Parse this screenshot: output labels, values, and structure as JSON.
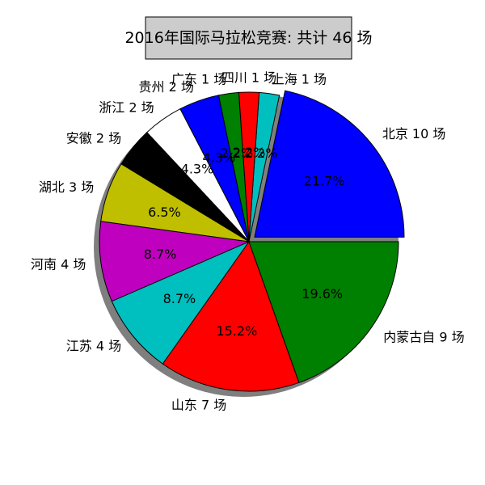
{
  "chart_data": {
    "type": "pie",
    "title": "2016年国际马拉松竞赛: 共计 46 场",
    "slices": [
      {
        "label": "北京 10 场",
        "value": 10,
        "pct": "21.7%",
        "color": "#0000ff",
        "explode": true
      },
      {
        "label": "上海 1 场",
        "value": 1,
        "pct": "2.2%",
        "color": "#00bfbf",
        "explode": false
      },
      {
        "label": "四川 1 场",
        "value": 1,
        "pct": "2.2%",
        "color": "#ff0000",
        "explode": false
      },
      {
        "label": "广东 1 场",
        "value": 1,
        "pct": "2.2%",
        "color": "#008000",
        "explode": false
      },
      {
        "label": "贵州 2 场",
        "value": 2,
        "pct": "4.3%",
        "color": "#0000ff",
        "explode": false
      },
      {
        "label": "浙江 2 场",
        "value": 2,
        "pct": "4.3%",
        "color": "#ffffff",
        "explode": false
      },
      {
        "label": "安徽 2 场",
        "value": 2,
        "pct": "4.3%",
        "color": "#000000",
        "explode": false
      },
      {
        "label": "湖北 3 场",
        "value": 3,
        "pct": "6.5%",
        "color": "#bfbf00",
        "explode": false
      },
      {
        "label": "河南 4 场",
        "value": 4,
        "pct": "8.7%",
        "color": "#bf00bf",
        "explode": false
      },
      {
        "label": "江苏 4 场",
        "value": 4,
        "pct": "8.7%",
        "color": "#00bfbf",
        "explode": false
      },
      {
        "label": "山东 7 场",
        "value": 7,
        "pct": "15.2%",
        "color": "#ff0000",
        "explode": false
      },
      {
        "label": "内蒙古自 9 场",
        "value": 9,
        "pct": "19.6%",
        "color": "#008000",
        "explode": false
      }
    ],
    "start_angle_deg": 0,
    "direction": "clockwise",
    "shadow": true
  }
}
